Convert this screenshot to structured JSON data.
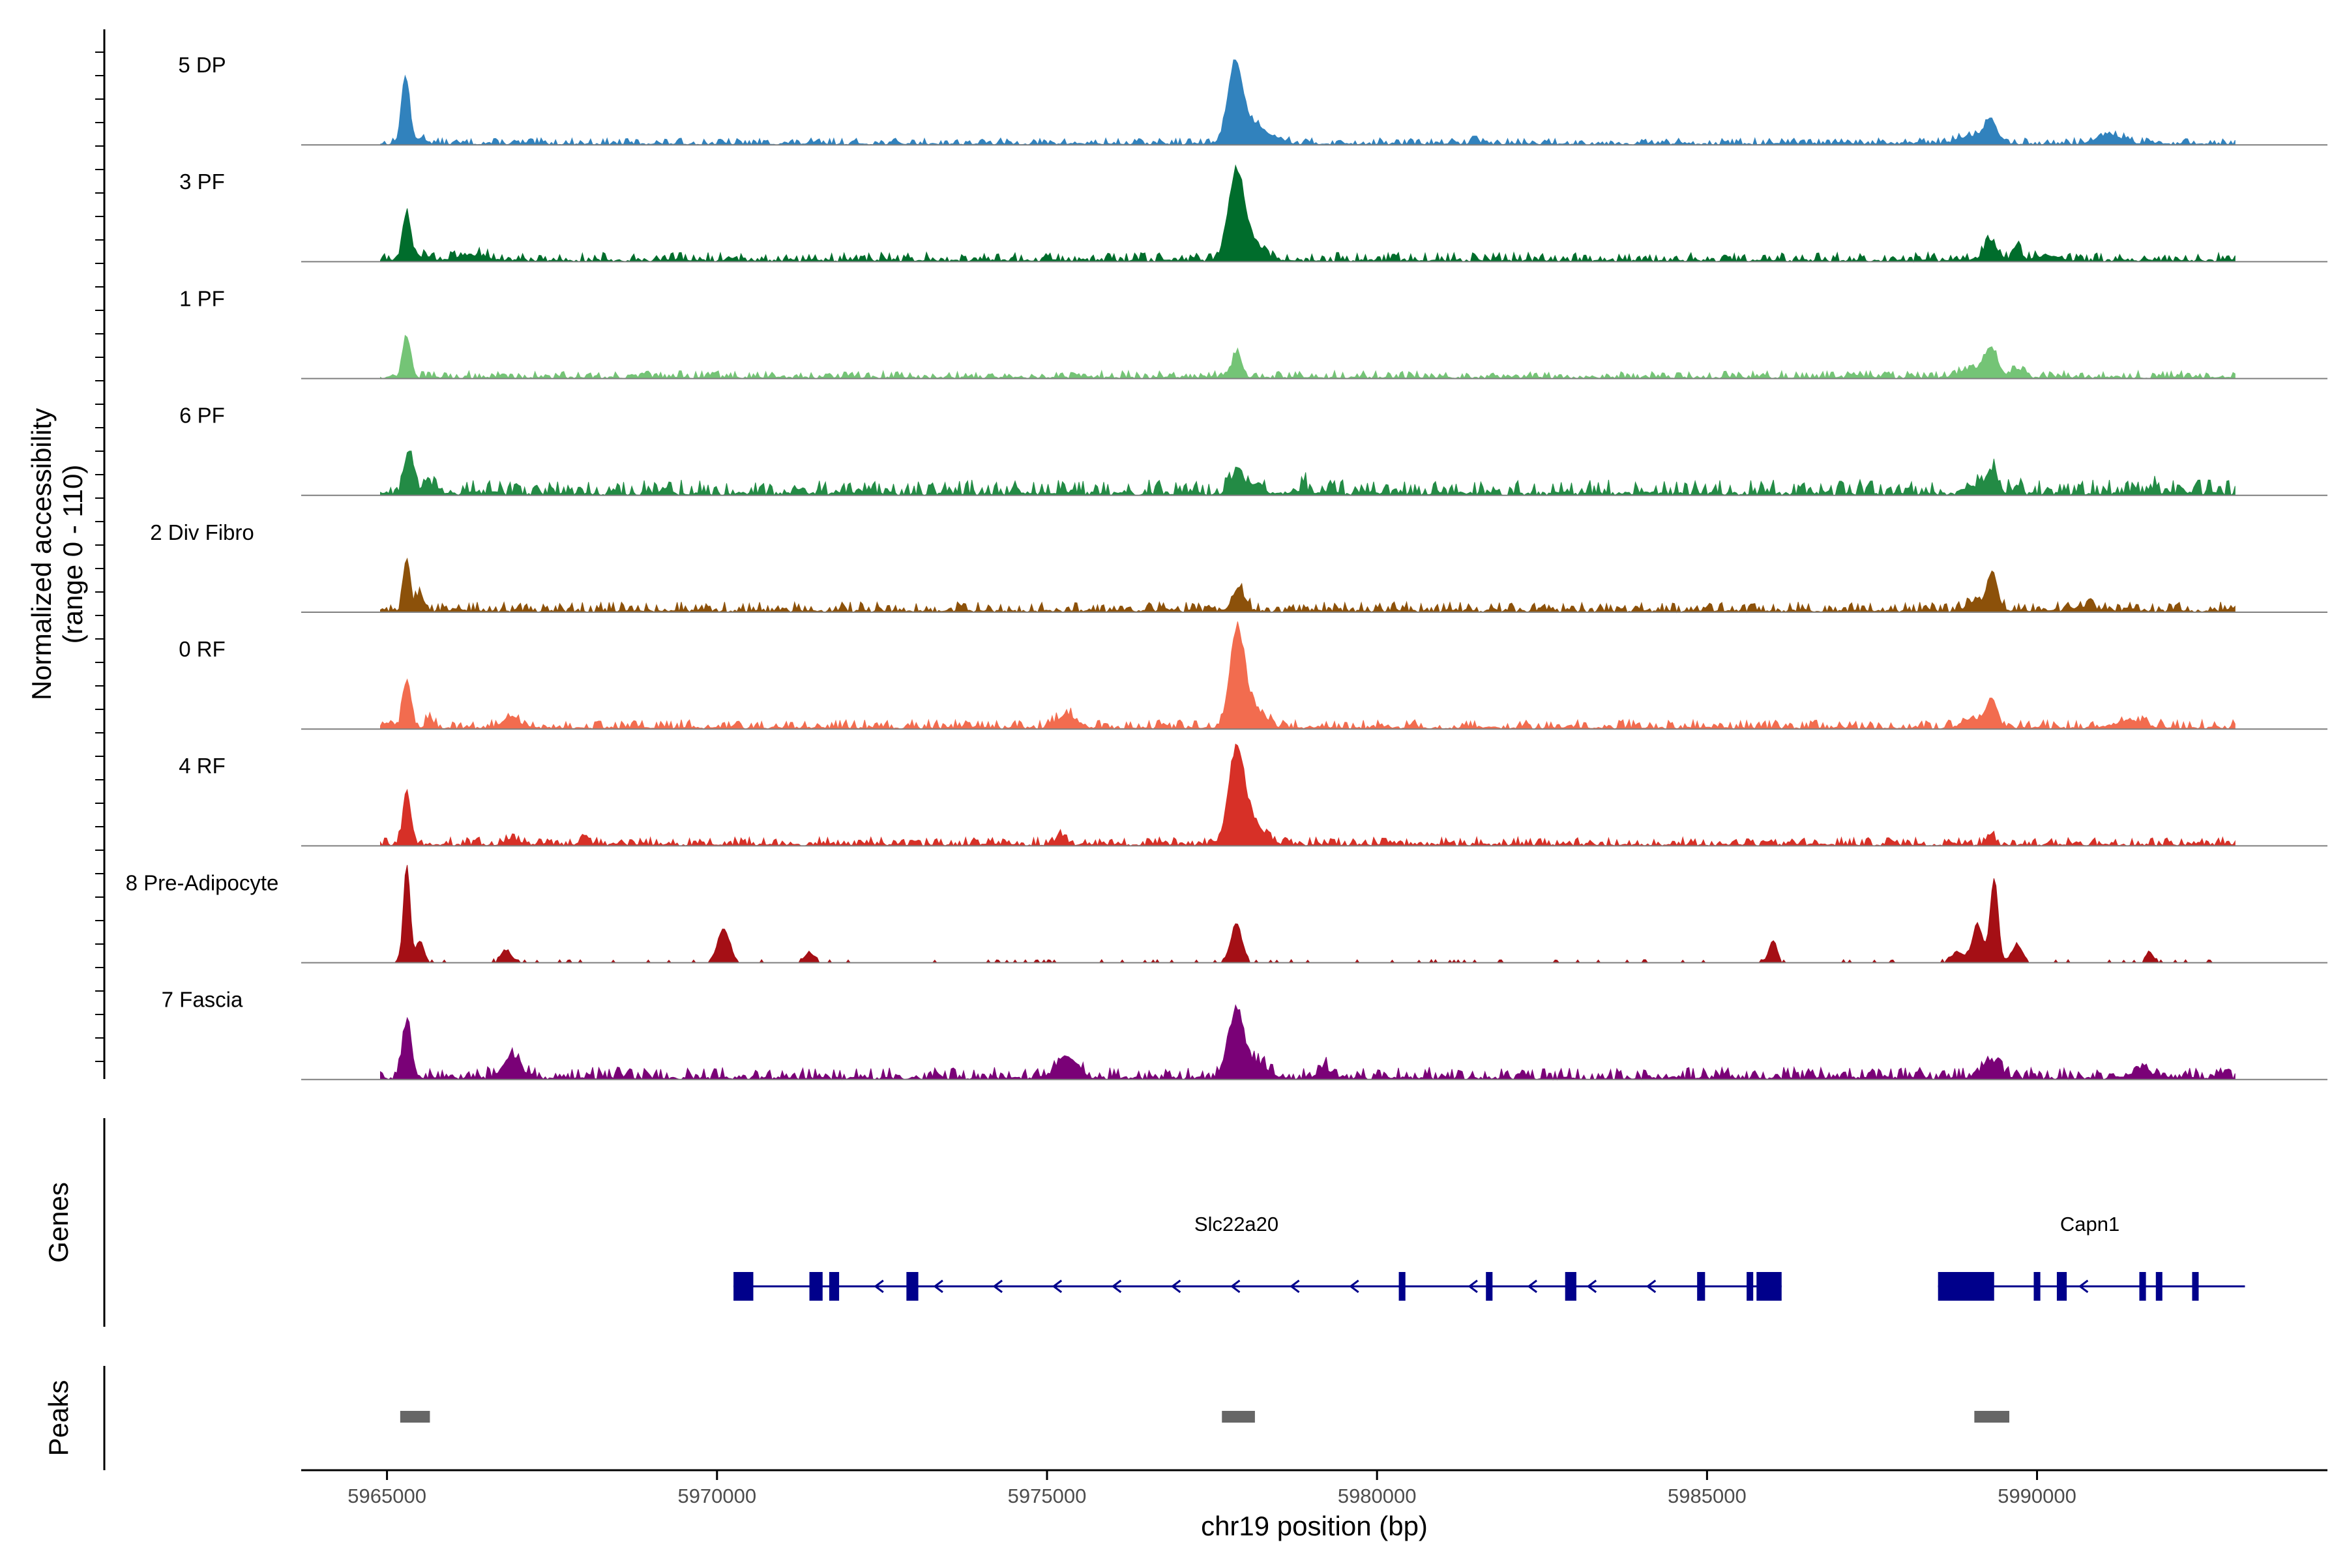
{
  "chart_data": {
    "type": "coverage-track",
    "genome_region": {
      "chrom": "chr19",
      "start": 5963700,
      "end": 5994400
    },
    "xlabel": "chr19 position (bp)",
    "x_ticks": [
      5965000,
      5970000,
      5975000,
      5980000,
      5985000,
      5990000
    ],
    "ylabel_line1": "Normalized accessibility",
    "ylabel_line2": "(range 0 - 110)",
    "y_range": [
      0,
      110
    ],
    "tracks": [
      {
        "name": "5 DP",
        "color": "#3182bd",
        "peaks": [
          [
            5965280,
            70,
            60
          ],
          [
            5965520,
            6,
            80
          ],
          [
            5977850,
            82,
            110
          ],
          [
            5978150,
            20,
            160
          ],
          [
            5978500,
            5,
            120
          ],
          [
            5981500,
            9,
            40
          ],
          [
            5989300,
            24,
            90
          ],
          [
            5989000,
            8,
            200
          ],
          [
            5991100,
            9,
            200
          ]
        ],
        "noise": 2.2
      },
      {
        "name": "3 PF",
        "color": "#006d2c",
        "peaks": [
          [
            5965300,
            50,
            60
          ],
          [
            5965600,
            5,
            90
          ],
          [
            5966300,
            6,
            200
          ],
          [
            5977870,
            90,
            120
          ],
          [
            5978150,
            15,
            150
          ],
          [
            5989300,
            21,
            90
          ],
          [
            5989700,
            16,
            60
          ],
          [
            5990200,
            5,
            150
          ]
        ],
        "noise": 3.0
      },
      {
        "name": "1 PF",
        "color": "#74c476",
        "peaks": [
          [
            5965300,
            42,
            60
          ],
          [
            5977880,
            26,
            70
          ],
          [
            5989300,
            29,
            100
          ],
          [
            5989000,
            8,
            170
          ],
          [
            5989700,
            8,
            100
          ]
        ],
        "noise": 2.5
      },
      {
        "name": "6 PF",
        "color": "#238b45",
        "peaks": [
          [
            5965340,
            43,
            70
          ],
          [
            5965650,
            12,
            40
          ],
          [
            5977900,
            25,
            90
          ],
          [
            5978200,
            12,
            90
          ],
          [
            5978900,
            9,
            40
          ],
          [
            5989300,
            25,
            90
          ],
          [
            5989000,
            9,
            100
          ],
          [
            5989700,
            9,
            50
          ],
          [
            5991800,
            8,
            40
          ]
        ],
        "noise": 5.0
      },
      {
        "name": "2 Div Fibro",
        "color": "#8c510a",
        "peaks": [
          [
            5965300,
            55,
            50
          ],
          [
            5965500,
            18,
            60
          ],
          [
            5977900,
            24,
            90
          ],
          [
            5989320,
            38,
            80
          ],
          [
            5989050,
            9,
            120
          ],
          [
            5990700,
            5,
            150
          ]
        ],
        "noise": 3.3
      },
      {
        "name": "0 RF",
        "color": "#f26c4f",
        "peaks": [
          [
            5965300,
            49,
            60
          ],
          [
            5965650,
            9,
            60
          ],
          [
            5966900,
            12,
            100
          ],
          [
            5975300,
            14,
            140
          ],
          [
            5977880,
            97,
            110
          ],
          [
            5978150,
            18,
            160
          ],
          [
            5989310,
            31,
            80
          ],
          [
            5989000,
            9,
            130
          ],
          [
            5991400,
            8,
            200
          ]
        ],
        "noise": 3.0
      },
      {
        "name": "4 RF",
        "color": "#d73027",
        "peaks": [
          [
            5965300,
            50,
            60
          ],
          [
            5966900,
            6,
            100
          ],
          [
            5968000,
            10,
            60
          ],
          [
            5975200,
            10,
            70
          ],
          [
            5977870,
            95,
            120
          ],
          [
            5978150,
            20,
            150
          ],
          [
            5989300,
            10,
            60
          ]
        ],
        "noise": 2.8
      },
      {
        "name": "8 Pre-Adipocyte",
        "color": "#a50f15",
        "peaks": [
          [
            5965300,
            100,
            50
          ],
          [
            5965500,
            22,
            60
          ],
          [
            5966800,
            12,
            80
          ],
          [
            5970100,
            34,
            90
          ],
          [
            5971400,
            10,
            70
          ],
          [
            5977870,
            40,
            80
          ],
          [
            5986000,
            22,
            60
          ],
          [
            5988800,
            10,
            100
          ],
          [
            5989350,
            85,
            60
          ],
          [
            5989100,
            38,
            80
          ],
          [
            5989700,
            18,
            80
          ],
          [
            5991700,
            10,
            60
          ]
        ],
        "noise": 1.0
      },
      {
        "name": "7 Fascia",
        "color": "#7a0177",
        "peaks": [
          [
            5965300,
            55,
            70
          ],
          [
            5966900,
            22,
            130
          ],
          [
            5975300,
            23,
            150
          ],
          [
            5977870,
            70,
            110
          ],
          [
            5978200,
            15,
            140
          ],
          [
            5979200,
            11,
            90
          ],
          [
            5989300,
            17,
            130
          ],
          [
            5991600,
            10,
            130
          ]
        ],
        "noise": 4.0
      }
    ],
    "genes": {
      "title": "Genes",
      "color": "#00008b",
      "items": [
        {
          "name": "Slc22a20",
          "label_pos": 5977870,
          "strand": "-",
          "start": 5970250,
          "end": 5986130,
          "exons": [
            [
              5970250,
              5970550
            ],
            [
              5971400,
              5971600
            ],
            [
              5971700,
              5971850
            ],
            [
              5972870,
              5973050
            ],
            [
              5980330,
              5980430
            ],
            [
              5981650,
              5981750
            ],
            [
              5982850,
              5983020
            ],
            [
              5984850,
              5984970
            ],
            [
              5985600,
              5985700
            ],
            [
              5985750,
              5986130
            ]
          ]
        },
        {
          "name": "Capn1",
          "label_pos": 5990800,
          "strand": "-",
          "start": 5988500,
          "end": 5993150,
          "exons": [
            [
              5988500,
              5989350
            ],
            [
              5989950,
              5990050
            ],
            [
              5990300,
              5990450
            ],
            [
              5991550,
              5991650
            ],
            [
              5991800,
              5991880
            ],
            [
              5992350,
              5992430
            ]
          ]
        }
      ]
    },
    "peaks_track": {
      "title": "Peaks",
      "color": "#666666",
      "intervals": [
        [
          5965200,
          5965650
        ],
        [
          5977650,
          5978150
        ],
        [
          5989050,
          5989580
        ]
      ]
    }
  }
}
